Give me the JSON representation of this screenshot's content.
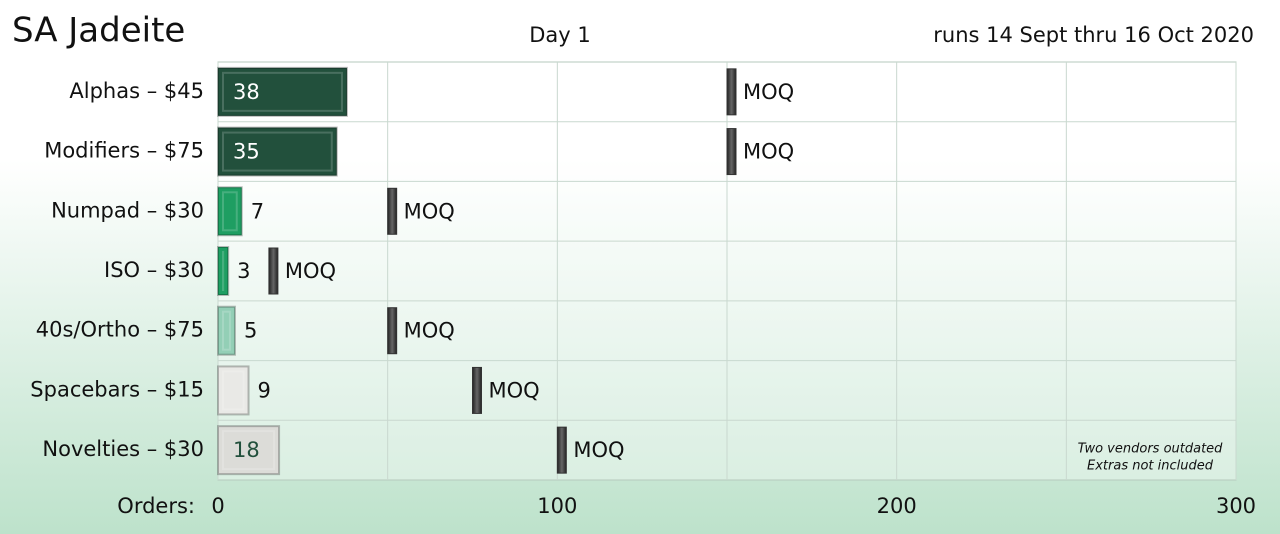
{
  "chart_data": {
    "type": "bar",
    "orientation": "horizontal",
    "title": "SA Jadeite",
    "subtitle": "Day 1",
    "date_note": "runs 14 Sept thru 16 Oct 2020",
    "x_label": "Orders:",
    "categories": [
      "Alphas – $45",
      "Modifiers – $75",
      "Numpad – $30",
      "ISO – $30",
      "40s/Ortho – $75",
      "Spacebars – $15",
      "Novelties – $30"
    ],
    "series": [
      {
        "name": "Orders",
        "values": [
          38,
          35,
          7,
          3,
          5,
          9,
          18
        ],
        "colors": [
          "#22503c",
          "#22503c",
          "#1e9e62",
          "#1e9e62",
          "#93cfb6",
          "#e9e9e6",
          "#dcdcd8"
        ]
      },
      {
        "name": "MOQ",
        "values": [
          150,
          150,
          50,
          15,
          50,
          75,
          100
        ],
        "color": "#333333"
      }
    ],
    "xlim": [
      0,
      300
    ],
    "xticks": [
      0,
      100,
      200,
      300
    ],
    "minor_xticks": [
      50,
      150,
      250
    ],
    "grid": true,
    "annotations": [
      "Two vendors outdated",
      "Extras not included"
    ]
  }
}
